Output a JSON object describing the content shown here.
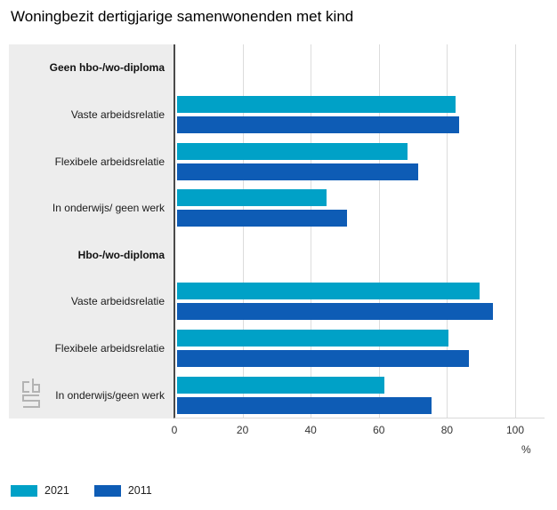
{
  "chart_data": {
    "type": "bar",
    "orientation": "horizontal",
    "title": "Woningbezit dertigjarige samenwonenden met kind",
    "xlabel": "%",
    "xlim": [
      0,
      100
    ],
    "xticks": [
      0,
      20,
      40,
      60,
      80,
      100
    ],
    "grid": true,
    "legend_position": "bottom-left",
    "categories": [
      "Geen hbo-/wo-diploma",
      "Vaste arbeidsrelatie",
      "Flexibele arbeidsrelatie",
      "In onderwijs/ geen werk",
      "Hbo-/wo-diploma",
      "Vaste arbeidsrelatie",
      "Flexibele arbeidsrelatie",
      "In onderwijs/geen werk"
    ],
    "header_rows": [
      0,
      4
    ],
    "series": [
      {
        "name": "2021",
        "color": "#00a1c7",
        "values": [
          null,
          82,
          68,
          44,
          null,
          89,
          80,
          61
        ]
      },
      {
        "name": "2011",
        "color": "#0e5cb5",
        "values": [
          null,
          83,
          71,
          50,
          null,
          93,
          86,
          75
        ]
      }
    ]
  },
  "branding": {
    "logo": "cbs-logo"
  }
}
